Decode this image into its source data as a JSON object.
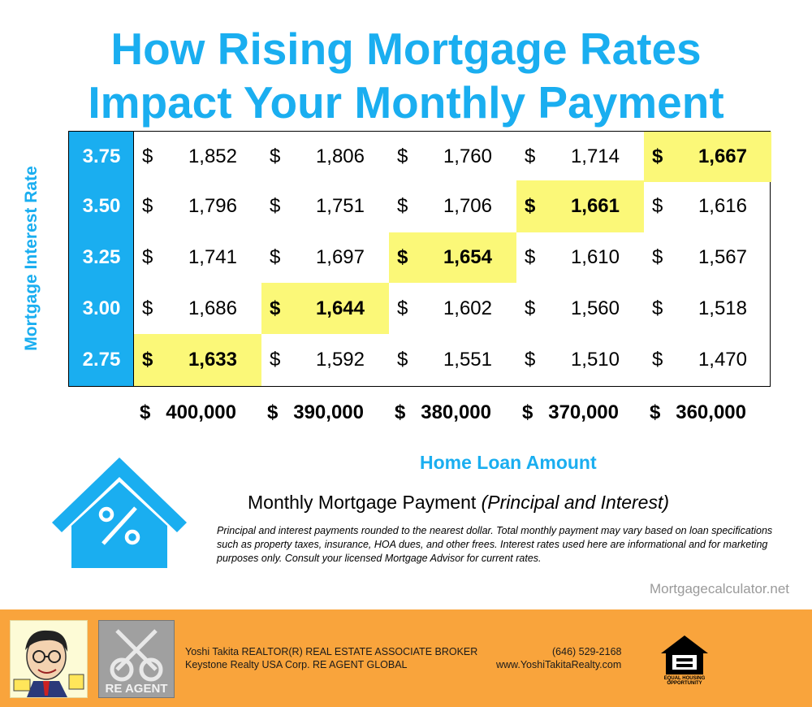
{
  "title_line1": "How Rising Mortgage Rates",
  "title_line2": "Impact Your Monthly Payment",
  "chart_data": {
    "type": "table",
    "ylabel": "Mortgage Interest Rate",
    "xlabel": "Home Loan Amount",
    "rates": [
      "3.75",
      "3.50",
      "3.25",
      "3.00",
      "2.75"
    ],
    "loan_amounts": [
      "400,000",
      "390,000",
      "380,000",
      "370,000",
      "360,000"
    ],
    "values": [
      [
        "1,852",
        "1,806",
        "1,760",
        "1,714",
        "1,667"
      ],
      [
        "1,796",
        "1,751",
        "1,706",
        "1,661",
        "1,616"
      ],
      [
        "1,741",
        "1,697",
        "1,654",
        "1,610",
        "1,567"
      ],
      [
        "1,686",
        "1,644",
        "1,602",
        "1,560",
        "1,518"
      ],
      [
        "1,633",
        "1,592",
        "1,551",
        "1,510",
        "1,470"
      ]
    ],
    "highlighted": [
      [
        0,
        4
      ],
      [
        1,
        3
      ],
      [
        2,
        2
      ],
      [
        3,
        1
      ],
      [
        4,
        0
      ]
    ],
    "currency_symbol": "$",
    "highlight_color": "#fbf878",
    "rate_column_color": "#1aaef0"
  },
  "legend_main": "Monthly Mortgage Payment ",
  "legend_italic": "(Principal and Interest)",
  "disclaimer": "Principal and interest payments rounded to the nearest dollar. Total monthly payment may vary based on loan specifications such as property taxes, insurance, HOA dues, and other frees. Interest rates used here are informational and for marketing purposes only. Consult your licensed Mortgage Advisor for current rates.",
  "source": "Mortgagecalculator.net",
  "footer": {
    "agent_line1": "Yoshi Takita REALTOR(R) REAL ESTATE ASSOCIATE BROKER",
    "agent_line2": "Keystone Realty USA Corp.  RE AGENT GLOBAL",
    "phone": "(646) 529-2168",
    "website": "www.YoshiTakitaRealty.com",
    "reagent_logo_text": "RE AGENT",
    "ehl_line1": "EQUAL HOUSING",
    "ehl_line2": "OPPORTUNITY",
    "background": "#f9a43c"
  },
  "accent_color": "#1aaef0"
}
